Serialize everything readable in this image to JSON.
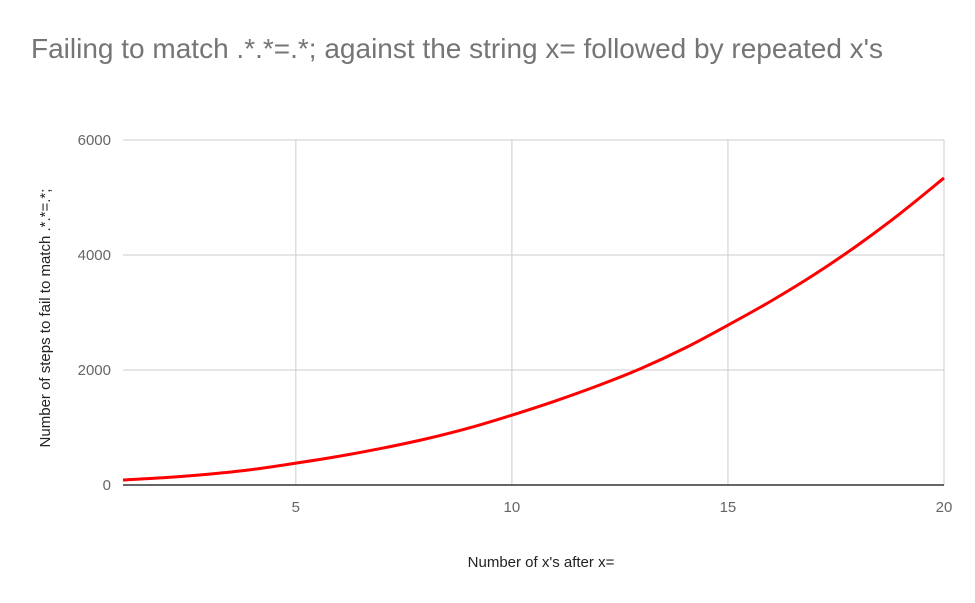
{
  "chart_data": {
    "type": "line",
    "title": "Failing to match .*.*=.*; against the string x= followed by repeated x's",
    "xlabel": "Number of x's after x=",
    "ylabel": "Number of steps to fail to match .*.*=.*;",
    "x": [
      1,
      2,
      3,
      4,
      5,
      6,
      7,
      8,
      9,
      10,
      11,
      12,
      13,
      14,
      15,
      16,
      17,
      18,
      19,
      20
    ],
    "series": [
      {
        "values": [
          87,
          130,
          190,
          270,
          380,
          500,
          640,
          800,
          990,
          1215,
          1460,
          1730,
          2030,
          2380,
          2780,
          3200,
          3660,
          4170,
          4730,
          5340
        ],
        "color": "#ff0000"
      }
    ],
    "xlim": [
      1,
      20
    ],
    "ylim": [
      0,
      6000
    ],
    "xticks": [
      5,
      10,
      15,
      20
    ],
    "yticks": [
      0,
      2000,
      4000,
      6000
    ],
    "grid": true,
    "legend": "none"
  }
}
